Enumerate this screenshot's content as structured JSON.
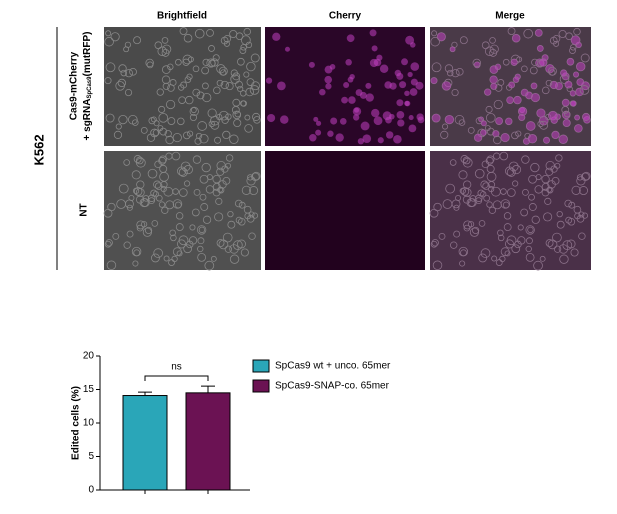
{
  "microscopy": {
    "cell_line": "K562",
    "columns": [
      "Brightfield",
      "Cherry",
      "Merge"
    ],
    "rows": [
      {
        "line1": "Cas9-mCherry",
        "line2": "+ sgRNA",
        "subscript": "SpCas9",
        "line2_end": "(mutRFP)"
      },
      {
        "line1": "NT"
      }
    ]
  },
  "chart_data": {
    "type": "bar",
    "ylabel": "Edited cells (%)",
    "annotation": "ns",
    "categories": [
      null,
      null
    ],
    "series": [
      {
        "name": "SpCas9 wt + unco. 65mer",
        "color": "#2aa6b8",
        "values": [
          14.1,
          null
        ],
        "errors": [
          0.5,
          null
        ]
      },
      {
        "name": "SpCas9-SNAP-co. 65mer",
        "color": "#6b1253",
        "values": [
          null,
          14.5
        ],
        "errors": [
          null,
          1.0
        ]
      }
    ],
    "ylim": [
      0,
      20
    ],
    "yticks": [
      0,
      5,
      10,
      15,
      20
    ]
  }
}
